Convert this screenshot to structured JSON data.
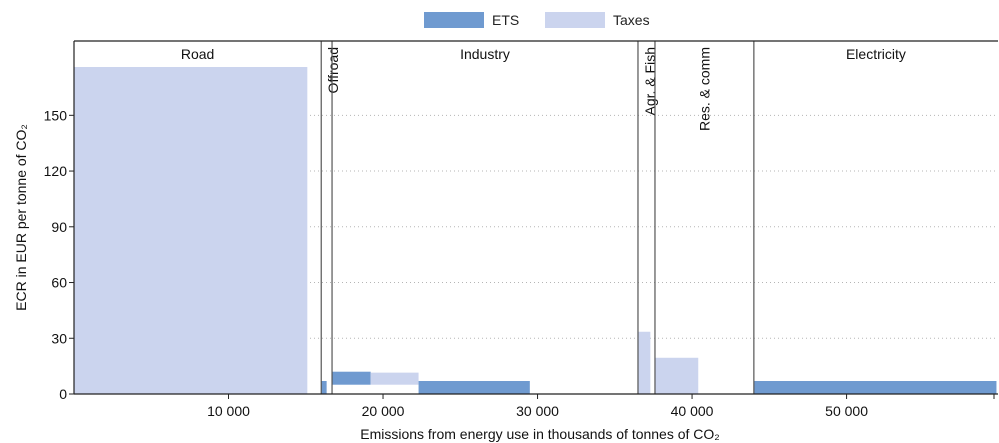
{
  "chart_data": {
    "type": "bar",
    "subtype": "variable-width step chart (effective carbon rates by sector)",
    "xlabel": "Emissions from energy use in thousands of tonnes of CO₂",
    "ylabel": "ECR in EUR per tonne of CO₂",
    "xlim": [
      0,
      59800
    ],
    "ylim": [
      0,
      190
    ],
    "x_ticks": [
      {
        "value": 10000,
        "label": "10 000"
      },
      {
        "value": 20000,
        "label": "20 000"
      },
      {
        "value": 30000,
        "label": "30 000"
      },
      {
        "value": 40000,
        "label": "40 000"
      },
      {
        "value": 50000,
        "label": "50 000"
      }
    ],
    "y_ticks": [
      {
        "value": 0,
        "label": "0"
      },
      {
        "value": 30,
        "label": "30"
      },
      {
        "value": 60,
        "label": "60"
      },
      {
        "value": 90,
        "label": "90"
      },
      {
        "value": 120,
        "label": "120"
      },
      {
        "value": 150,
        "label": "150"
      }
    ],
    "grid": "horizontal dotted",
    "legend_position": "top-center",
    "legend": [
      {
        "name": "ETS",
        "color": "#6f9ad0"
      },
      {
        "name": "Taxes",
        "color": "#cbd4ee"
      }
    ],
    "sectors": [
      {
        "label": "Road",
        "x0": 0,
        "x1": 16000,
        "orientation": "horizontal"
      },
      {
        "label": "Offroad",
        "x0": 16000,
        "x1": 16700,
        "orientation": "vertical"
      },
      {
        "label": "Industry",
        "x0": 16700,
        "x1": 36500,
        "orientation": "horizontal"
      },
      {
        "label": "Agr. & Fish",
        "x0": 36500,
        "x1": 37600,
        "orientation": "vertical"
      },
      {
        "label": "Res. & comm",
        "x0": 37600,
        "x1": 44000,
        "orientation": "vertical"
      },
      {
        "label": "Electricity",
        "x0": 44000,
        "x1": 59800,
        "orientation": "horizontal"
      }
    ],
    "bars": [
      {
        "series": "Taxes",
        "x0": 0,
        "x1": 15100,
        "y0": 0,
        "y1": 176
      },
      {
        "series": "ETS",
        "x0": 16000,
        "x1": 16350,
        "y0": 0,
        "y1": 7
      },
      {
        "series": "ETS",
        "x0": 16700,
        "x1": 19200,
        "y0": 5,
        "y1": 12
      },
      {
        "series": "Taxes",
        "x0": 19200,
        "x1": 22300,
        "y0": 5,
        "y1": 11.5
      },
      {
        "series": "ETS",
        "x0": 22300,
        "x1": 29500,
        "y0": 0,
        "y1": 7
      },
      {
        "series": "Taxes",
        "x0": 36500,
        "x1": 37300,
        "y0": 0,
        "y1": 33.5
      },
      {
        "series": "Taxes",
        "x0": 37600,
        "x1": 40400,
        "y0": 0,
        "y1": 19.5
      },
      {
        "series": "ETS",
        "x0": 44000,
        "x1": 59700,
        "y0": 0,
        "y1": 7
      }
    ]
  }
}
